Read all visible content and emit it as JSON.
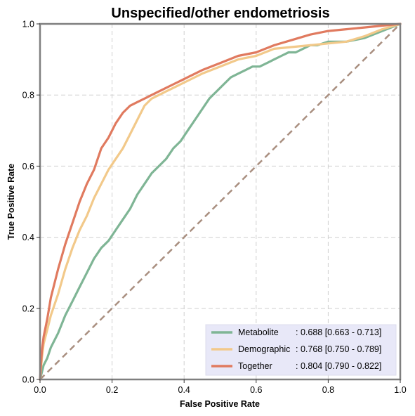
{
  "chart_data": {
    "type": "line",
    "title": "Unspecified/other endometriosis",
    "xlabel": "False Positive Rate",
    "ylabel": "True Positive Rate",
    "xlim": [
      0,
      1
    ],
    "ylim": [
      0,
      1
    ],
    "xticks": [
      "0.0",
      "0.2",
      "0.4",
      "0.6",
      "0.8",
      "1.0"
    ],
    "yticks": [
      "0.0",
      "0.2",
      "0.4",
      "0.6",
      "0.8",
      "1.0"
    ],
    "grid": true,
    "legend_position": "lower-right",
    "series": [
      {
        "name": "Metabolite",
        "label_name": "Metabolite",
        "label_value": ": 0.688 [0.663 - 0.713]",
        "color": "#7fb595",
        "x": [
          0,
          0.005,
          0.01,
          0.02,
          0.03,
          0.05,
          0.07,
          0.09,
          0.11,
          0.13,
          0.15,
          0.17,
          0.19,
          0.21,
          0.23,
          0.25,
          0.27,
          0.29,
          0.31,
          0.33,
          0.35,
          0.37,
          0.39,
          0.41,
          0.43,
          0.45,
          0.47,
          0.49,
          0.51,
          0.53,
          0.55,
          0.57,
          0.59,
          0.61,
          0.63,
          0.65,
          0.67,
          0.69,
          0.71,
          0.73,
          0.75,
          0.77,
          0.8,
          0.85,
          0.9,
          0.95,
          1.0
        ],
        "y": [
          0,
          0.02,
          0.04,
          0.06,
          0.09,
          0.13,
          0.18,
          0.22,
          0.26,
          0.3,
          0.34,
          0.37,
          0.39,
          0.42,
          0.45,
          0.48,
          0.52,
          0.55,
          0.58,
          0.6,
          0.62,
          0.65,
          0.67,
          0.7,
          0.73,
          0.76,
          0.79,
          0.81,
          0.83,
          0.85,
          0.86,
          0.87,
          0.88,
          0.88,
          0.89,
          0.9,
          0.91,
          0.92,
          0.92,
          0.93,
          0.94,
          0.94,
          0.95,
          0.95,
          0.96,
          0.98,
          1.0
        ]
      },
      {
        "name": "Demographic",
        "label_name": "Demographic",
        "label_value": ": 0.768 [0.750 - 0.789]",
        "color": "#f2c98a",
        "x": [
          0,
          0.005,
          0.01,
          0.02,
          0.03,
          0.05,
          0.07,
          0.09,
          0.11,
          0.13,
          0.15,
          0.17,
          0.19,
          0.21,
          0.23,
          0.25,
          0.27,
          0.29,
          0.31,
          0.33,
          0.35,
          0.37,
          0.39,
          0.41,
          0.45,
          0.5,
          0.55,
          0.6,
          0.65,
          0.7,
          0.75,
          0.8,
          0.85,
          0.9,
          0.95,
          1.0
        ],
        "y": [
          0,
          0.06,
          0.1,
          0.14,
          0.18,
          0.24,
          0.31,
          0.37,
          0.42,
          0.46,
          0.51,
          0.55,
          0.59,
          0.62,
          0.65,
          0.69,
          0.73,
          0.77,
          0.79,
          0.8,
          0.81,
          0.82,
          0.83,
          0.84,
          0.86,
          0.88,
          0.9,
          0.91,
          0.93,
          0.935,
          0.94,
          0.945,
          0.95,
          0.965,
          0.985,
          1.0
        ]
      },
      {
        "name": "Together",
        "label_name": "Together",
        "label_value": ": 0.804 [0.790 - 0.822]",
        "color": "#e07a5f",
        "x": [
          0,
          0.005,
          0.01,
          0.02,
          0.03,
          0.05,
          0.07,
          0.09,
          0.11,
          0.13,
          0.15,
          0.17,
          0.19,
          0.21,
          0.23,
          0.25,
          0.27,
          0.29,
          0.31,
          0.33,
          0.35,
          0.37,
          0.39,
          0.41,
          0.45,
          0.5,
          0.55,
          0.6,
          0.65,
          0.7,
          0.75,
          0.8,
          0.85,
          0.9,
          0.95,
          1.0
        ],
        "y": [
          0,
          0.08,
          0.12,
          0.17,
          0.23,
          0.31,
          0.38,
          0.44,
          0.5,
          0.55,
          0.59,
          0.65,
          0.68,
          0.72,
          0.75,
          0.77,
          0.78,
          0.79,
          0.8,
          0.81,
          0.82,
          0.83,
          0.84,
          0.85,
          0.87,
          0.89,
          0.91,
          0.92,
          0.94,
          0.955,
          0.97,
          0.98,
          0.985,
          0.99,
          0.995,
          1.0
        ]
      }
    ],
    "reference_line": {
      "color": "#a98f80",
      "x": [
        0,
        1
      ],
      "y": [
        0,
        1
      ]
    },
    "legend_background": "#e8e8f8"
  }
}
